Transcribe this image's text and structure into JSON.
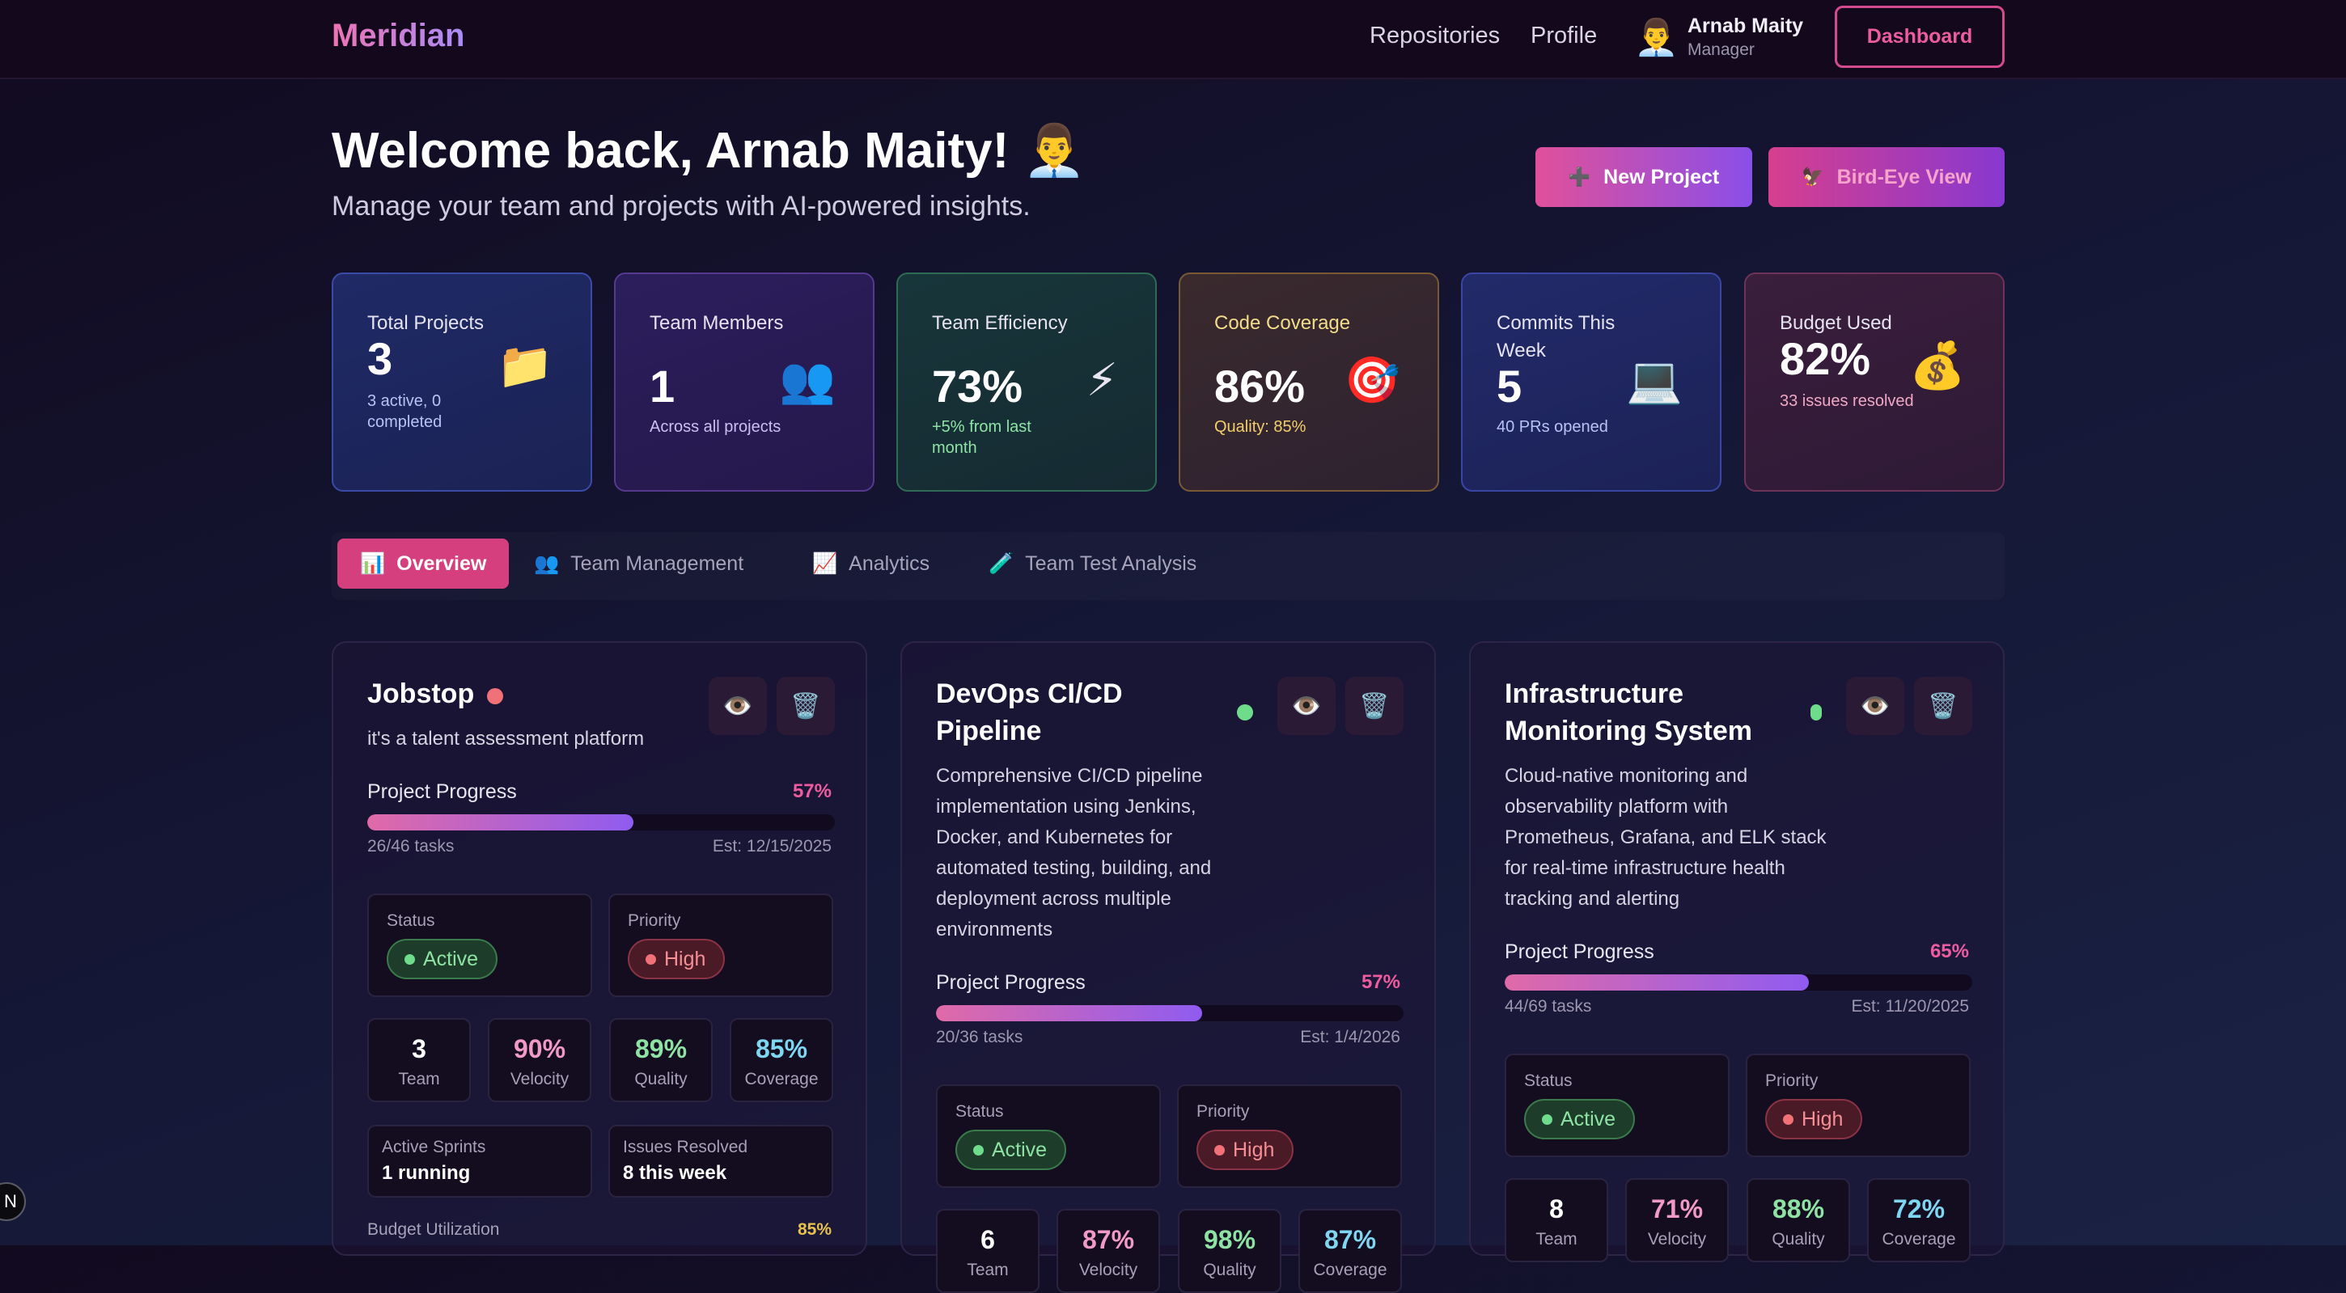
{
  "header": {
    "brand": "Meridian",
    "nav": [
      "Repositories",
      "Profile"
    ],
    "user": {
      "avatar_icon": "👨‍💼",
      "name": "Arnab Maity",
      "role": "Manager"
    },
    "dashboard_label": "Dashboard"
  },
  "hero": {
    "welcome": "Welcome back, Arnab Maity! 👨‍💼",
    "subtitle": "Manage your team and projects with AI-powered insights.",
    "new_project": {
      "icon": "➕",
      "label": "New Project"
    },
    "bird_eye": {
      "icon": "🦅",
      "label": "Bird-Eye View"
    }
  },
  "stats": [
    {
      "label": "Total Projects",
      "value": "3",
      "sub": "3 active, 0 completed",
      "icon": "📁",
      "sub_color": "#b9c3f3"
    },
    {
      "label": "Team Members",
      "value": "1",
      "sub": "Across all projects",
      "icon": "👥",
      "sub_color": "#c9bff0"
    },
    {
      "label": "Team Efficiency",
      "value": "73%",
      "sub": "+5% from last month",
      "icon": "⚡",
      "sub_color": "#8ee3a4"
    },
    {
      "label": "Code Coverage",
      "value": "86%",
      "sub": "Quality: 85%",
      "icon": "🎯",
      "sub_color": "#f2cf6b"
    },
    {
      "label": "Commits This Week",
      "value": "5",
      "sub": "40 PRs opened",
      "icon": "💻",
      "sub_color": "#b9c3f3"
    },
    {
      "label": "Budget Used",
      "value": "82%",
      "sub": "33 issues resolved",
      "icon": "💰",
      "sub_color": "#f0a8c4"
    }
  ],
  "tabs": [
    {
      "icon": "📊",
      "label": "Overview"
    },
    {
      "icon": "👥",
      "label": "Team Management"
    },
    {
      "icon": "📈",
      "label": "Analytics"
    },
    {
      "icon": "🧪",
      "label": "Team Test Analysis"
    }
  ],
  "projects": [
    {
      "title": "Jobstop",
      "description": "it's a talent assessment platform",
      "status_dot_color": "#f07178",
      "progress_label": "Project Progress",
      "progress_pct": "57%",
      "progress": 0.57,
      "tasks": "26/46 tasks",
      "est": "Est: 12/15/2025",
      "status_label": "Status",
      "status": "Active",
      "priority_label": "Priority",
      "priority": "High",
      "metrics": [
        {
          "value": "3",
          "label": "Team"
        },
        {
          "value": "90%",
          "label": "Velocity"
        },
        {
          "value": "89%",
          "label": "Quality"
        },
        {
          "value": "85%",
          "label": "Coverage"
        }
      ],
      "sprints_label": "Active Sprints",
      "sprints": "1 running",
      "issues_label": "Issues Resolved",
      "issues": "8 this week",
      "budget_label": "Budget Utilization",
      "budget_pct": "85%"
    },
    {
      "title": "DevOps CI/CD Pipeline",
      "description": "Comprehensive CI/CD pipeline implementation using Jenkins, Docker, and Kubernetes for automated testing, building, and deployment across multiple environments",
      "status_dot_color": "#6fdc8b",
      "progress_label": "Project Progress",
      "progress_pct": "57%",
      "progress": 0.57,
      "tasks": "20/36 tasks",
      "est": "Est: 1/4/2026",
      "status_label": "Status",
      "status": "Active",
      "priority_label": "Priority",
      "priority": "High",
      "metrics": [
        {
          "value": "6",
          "label": "Team"
        },
        {
          "value": "87%",
          "label": "Velocity"
        },
        {
          "value": "98%",
          "label": "Quality"
        },
        {
          "value": "87%",
          "label": "Coverage"
        }
      ]
    },
    {
      "title": "Infrastructure Monitoring System",
      "description": "Cloud-native monitoring and observability platform with Prometheus, Grafana, and ELK stack for real-time infrastructure health tracking and alerting",
      "status_dot_color": "#6fdc8b",
      "progress_label": "Project Progress",
      "progress_pct": "65%",
      "progress": 0.65,
      "tasks": "44/69 tasks",
      "est": "Est: 11/20/2025",
      "status_label": "Status",
      "status": "Active",
      "priority_label": "Priority",
      "priority": "High",
      "metrics": [
        {
          "value": "8",
          "label": "Team"
        },
        {
          "value": "71%",
          "label": "Velocity"
        },
        {
          "value": "88%",
          "label": "Quality"
        },
        {
          "value": "72%",
          "label": "Coverage"
        }
      ]
    }
  ],
  "card_actions": {
    "view_icon": "👁️",
    "delete_icon": "🗑️"
  },
  "colors": {
    "accent_pink": "#d63f7e",
    "velocity": "#f29ac6",
    "quality": "#8ee3a4",
    "coverage": "#7fd6f0"
  },
  "corner_badge": "N"
}
